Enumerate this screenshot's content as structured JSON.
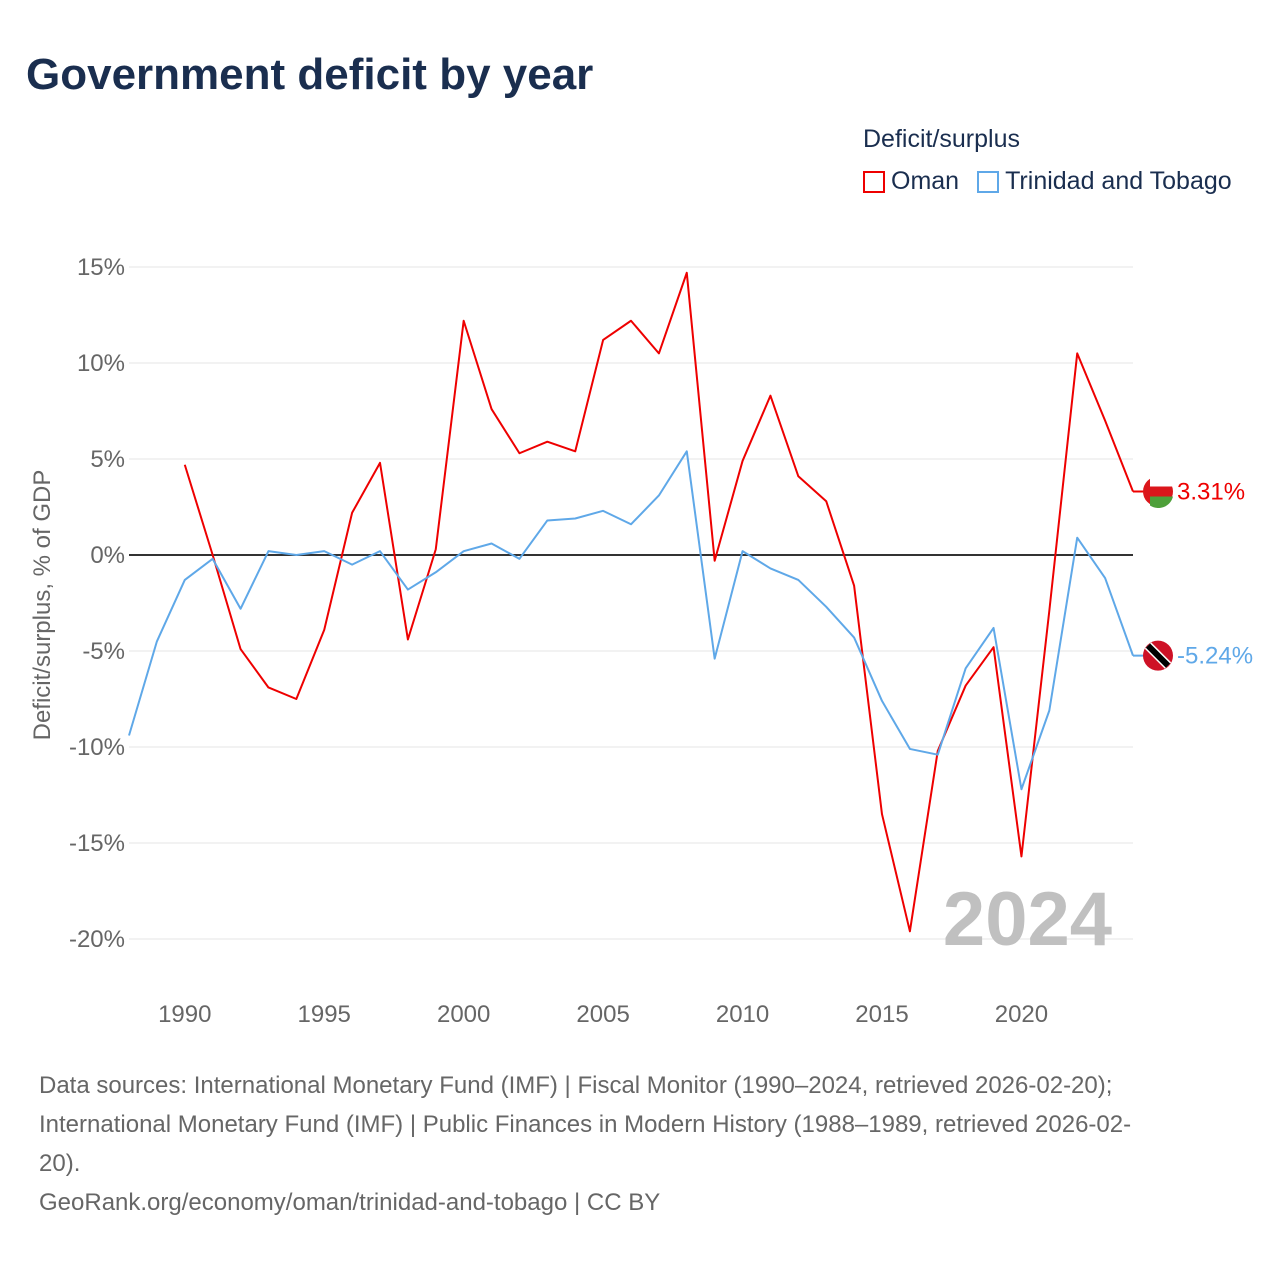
{
  "title": "Government deficit by year",
  "legend": {
    "title": "Deficit/surplus",
    "items": [
      "Oman",
      "Trinidad and Tobago"
    ]
  },
  "colors": {
    "Oman": "#ee0000",
    "Trinidad and Tobago": "#5fa8e8"
  },
  "sources": {
    "line1": "Data sources: International Monetary Fund (IMF) | Fiscal Monitor (1990–2024, retrieved 2026-02-20);",
    "line2": "International Monetary Fund (IMF) | Public Finances in Modern History (1988–1989, retrieved 2026-02-",
    "line3": "20).",
    "line4": "GeoRank.org/economy/oman/trinidad-and-tobago | CC BY"
  },
  "chart_data": {
    "type": "line",
    "title": "Government deficit by year",
    "ylabel": "Deficit/surplus, % of GDP",
    "xlabel": "",
    "ylim": [
      -22,
      16
    ],
    "xlim": [
      1988,
      2024
    ],
    "yticks": [
      15,
      10,
      5,
      0,
      -5,
      -10,
      -15,
      -20
    ],
    "ytick_labels": [
      "15%",
      "10%",
      "5%",
      "0%",
      "-5%",
      "-10%",
      "-15%",
      "-20%"
    ],
    "xticks": [
      1990,
      1995,
      2000,
      2005,
      2010,
      2015,
      2020
    ],
    "year_watermark": "2024",
    "series": [
      {
        "name": "Oman",
        "start": 1990,
        "end_label": "3.31%",
        "values": [
          4.7,
          0.0,
          -4.9,
          -6.9,
          -7.5,
          -3.9,
          2.2,
          4.8,
          -4.4,
          0.3,
          12.2,
          7.6,
          5.3,
          5.9,
          5.4,
          11.2,
          12.2,
          10.5,
          14.7,
          -0.3,
          4.9,
          8.3,
          4.1,
          2.8,
          -1.6,
          -13.5,
          -19.6,
          -10.2,
          -6.8,
          -4.8,
          -15.7,
          -2.9,
          10.5,
          7.0,
          3.31
        ]
      },
      {
        "name": "Trinidad and Tobago",
        "start": 1988,
        "end_label": "-5.24%",
        "values": [
          -9.4,
          -4.5,
          -1.3,
          -0.2,
          -2.8,
          0.2,
          0.0,
          0.2,
          -0.5,
          0.2,
          -1.8,
          -0.9,
          0.2,
          0.6,
          -0.2,
          1.8,
          1.9,
          2.3,
          1.6,
          3.1,
          5.4,
          -5.4,
          0.2,
          -0.7,
          -1.3,
          -2.7,
          -4.3,
          -7.6,
          -10.1,
          -10.4,
          -5.9,
          -3.8,
          -12.2,
          -8.1,
          0.9,
          -1.2,
          -5.24
        ]
      }
    ]
  }
}
